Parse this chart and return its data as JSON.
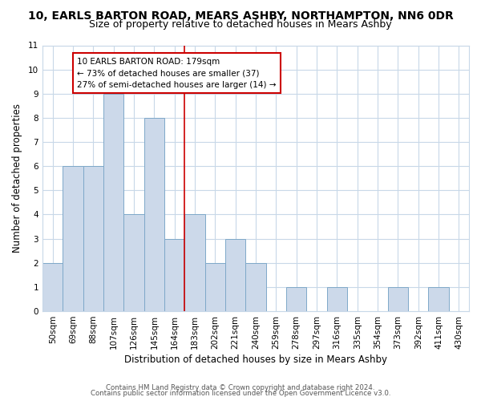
{
  "title_line1": "10, EARLS BARTON ROAD, MEARS ASHBY, NORTHAMPTON, NN6 0DR",
  "title_line2": "Size of property relative to detached houses in Mears Ashby",
  "xlabel": "Distribution of detached houses by size in Mears Ashby",
  "ylabel": "Number of detached properties",
  "bar_labels": [
    "50sqm",
    "69sqm",
    "88sqm",
    "107sqm",
    "126sqm",
    "145sqm",
    "164sqm",
    "183sqm",
    "202sqm",
    "221sqm",
    "240sqm",
    "259sqm",
    "278sqm",
    "297sqm",
    "316sqm",
    "335sqm",
    "354sqm",
    "373sqm",
    "392sqm",
    "411sqm",
    "430sqm"
  ],
  "bar_values": [
    2,
    6,
    6,
    9,
    4,
    8,
    3,
    4,
    2,
    3,
    2,
    0,
    1,
    0,
    1,
    0,
    0,
    1,
    0,
    1,
    0
  ],
  "bar_color": "#ccd9ea",
  "bar_edge_color": "#7ea8c9",
  "vline_index": 6.5,
  "annotation_title": "10 EARLS BARTON ROAD: 179sqm",
  "annotation_line1": "← 73% of detached houses are smaller (37)",
  "annotation_line2": "27% of semi-detached houses are larger (14) →",
  "annotation_box_color": "#ffffff",
  "annotation_border_color": "#cc0000",
  "vline_color": "#cc0000",
  "ylim": [
    0,
    11
  ],
  "yticks": [
    0,
    1,
    2,
    3,
    4,
    5,
    6,
    7,
    8,
    9,
    10,
    11
  ],
  "footer_line1": "Contains HM Land Registry data © Crown copyright and database right 2024.",
  "footer_line2": "Contains public sector information licensed under the Open Government Licence v3.0.",
  "bg_color": "#ffffff",
  "grid_color": "#c8d8e8",
  "title_fontsize": 10,
  "subtitle_fontsize": 9,
  "axis_label_fontsize": 8.5,
  "tick_fontsize": 7.5,
  "annotation_fontsize": 7.5,
  "footer_fontsize": 6.2
}
